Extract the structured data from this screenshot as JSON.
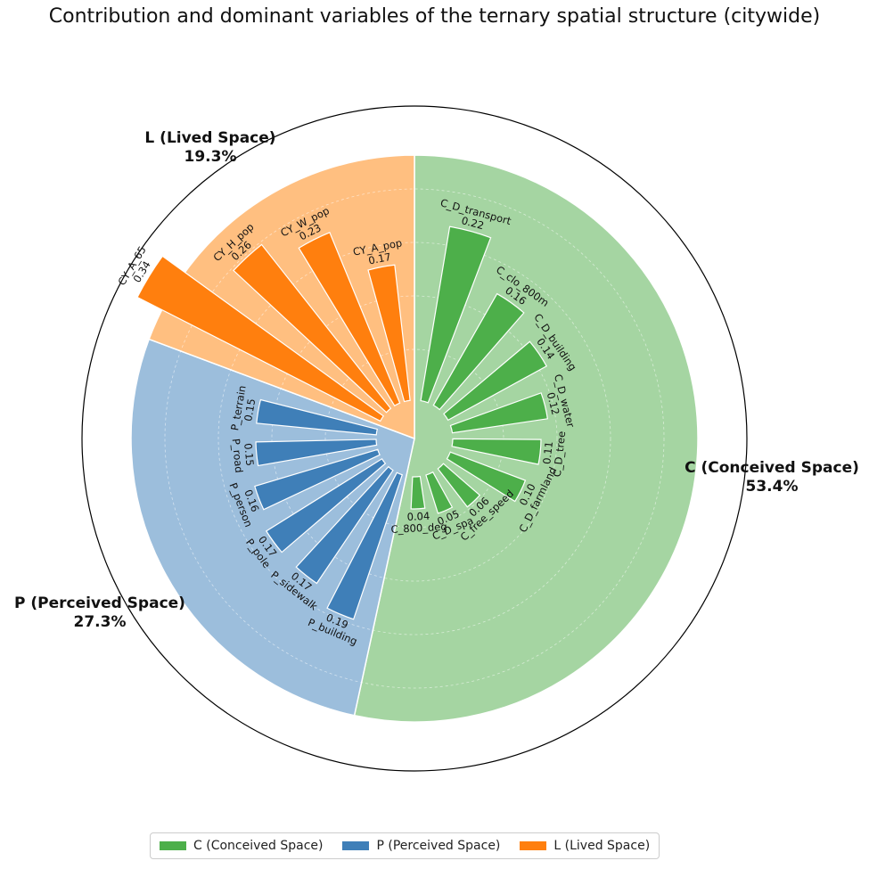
{
  "chart_data": {
    "type": "polar-bar",
    "title": "Contribution and dominant variables of the ternary spatial structure (citywide)",
    "groups": [
      {
        "key": "C",
        "name": "C (Conceived Space)",
        "label": "C (Conceived Space)",
        "percent_label": "53.4%",
        "percent": 53.4,
        "color": "#4daf4a",
        "bg_color": "#a5d5a2",
        "variables": [
          {
            "name": "C_D_transport",
            "value": 0.22,
            "value_label": "0.22"
          },
          {
            "name": "C_clo_800m",
            "value": 0.16,
            "value_label": "0.16"
          },
          {
            "name": "C_D_building",
            "value": 0.14,
            "value_label": "0.14"
          },
          {
            "name": "C_D_water",
            "value": 0.12,
            "value_label": "0.12"
          },
          {
            "name": "C_D_tree",
            "value": 0.11,
            "value_label": "0.11"
          },
          {
            "name": "C_D_farmland",
            "value": 0.1,
            "value_label": "0.10"
          },
          {
            "name": "C_free_speed",
            "value": 0.06,
            "value_label": "0.06"
          },
          {
            "name": "C_D_spa",
            "value": 0.05,
            "value_label": "0.05"
          },
          {
            "name": "C_800_deg",
            "value": 0.04,
            "value_label": "0.04"
          }
        ]
      },
      {
        "key": "P",
        "name": "P (Perceived Space)",
        "label": "P (Perceived Space)",
        "percent_label": "27.3%",
        "percent": 27.3,
        "color": "#3f7fb8",
        "bg_color": "#9cbedc",
        "variables": [
          {
            "name": "P_building",
            "value": 0.19,
            "value_label": "0.19"
          },
          {
            "name": "P_sidewalk",
            "value": 0.17,
            "value_label": "0.17"
          },
          {
            "name": "P_pole",
            "value": 0.17,
            "value_label": "0.17"
          },
          {
            "name": "P_person",
            "value": 0.16,
            "value_label": "0.16"
          },
          {
            "name": "P_road",
            "value": 0.15,
            "value_label": "0.15"
          },
          {
            "name": "P_terrain",
            "value": 0.15,
            "value_label": "0.15"
          }
        ]
      },
      {
        "key": "L",
        "name": "L (Lived Space)",
        "label": "L (Lived Space)",
        "percent_label": "19.3%",
        "percent": 19.3,
        "color": "#ff7f0e",
        "bg_color": "#ffbf80",
        "variables": [
          {
            "name": "CY_A_65",
            "value": 0.34,
            "value_label": "0.34"
          },
          {
            "name": "CY_H_pop",
            "value": 0.26,
            "value_label": "0.26"
          },
          {
            "name": "CY_W_pop",
            "value": 0.23,
            "value_label": "0.23"
          },
          {
            "name": "CY_A_pop",
            "value": 0.17,
            "value_label": "0.17"
          }
        ]
      }
    ],
    "grid": true,
    "legend_position": "bottom-center"
  }
}
